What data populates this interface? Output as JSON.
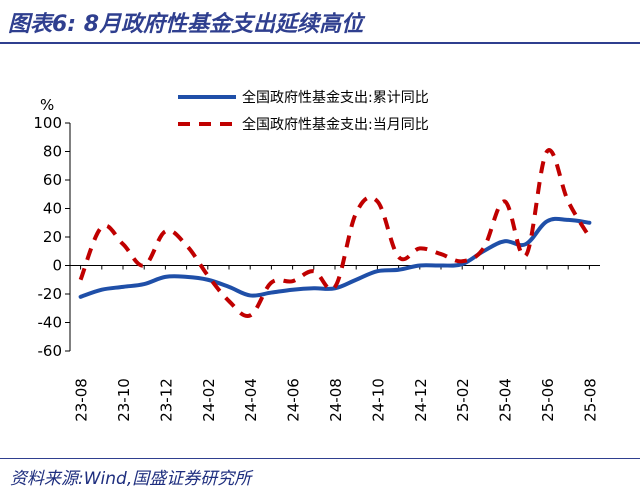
{
  "title": "图表6:  8月政府性基金支出延续高位",
  "source": "资料来源:Wind,国盛证券研究所",
  "chart_data": {
    "type": "line",
    "ylabel": "%",
    "ylim": [
      -60,
      100
    ],
    "yticks": [
      -60,
      -40,
      -20,
      0,
      20,
      40,
      60,
      80,
      100
    ],
    "x_categories": [
      "23-08",
      "23-09",
      "23-10",
      "23-11",
      "23-12",
      "24-01",
      "24-02",
      "24-03",
      "24-04",
      "24-05",
      "24-06",
      "24-07",
      "24-08",
      "24-09",
      "24-10",
      "24-11",
      "24-12",
      "25-01",
      "25-02",
      "25-03",
      "25-04",
      "25-05",
      "25-06",
      "25-07",
      "25-08"
    ],
    "xtick_labels": [
      "23-08",
      "23-10",
      "23-12",
      "24-02",
      "24-04",
      "24-06",
      "24-08",
      "24-10",
      "24-12",
      "25-02",
      "25-04",
      "25-06",
      "25-08"
    ],
    "grid": false,
    "legend_position": "top-right",
    "series": [
      {
        "name": "全国政府性基金支出:累计同比",
        "style": "solid",
        "color": "#1f4fa8",
        "values": [
          -22,
          -17,
          -15,
          -13,
          -8,
          -8,
          -10,
          -15,
          -21,
          -19,
          -17,
          -16,
          -16,
          -10,
          -4,
          -3,
          0,
          0,
          1,
          10,
          17,
          15,
          31,
          32,
          30
        ]
      },
      {
        "name": "全国政府性基金支出:当月同比",
        "style": "dashed",
        "color": "#c00000",
        "values": [
          -10,
          27,
          15,
          0,
          24,
          14,
          -7,
          -25,
          -35,
          -12,
          -11,
          -4,
          -15,
          37,
          45,
          6,
          12,
          8,
          3,
          12,
          45,
          7,
          80,
          45,
          20
        ]
      }
    ]
  }
}
